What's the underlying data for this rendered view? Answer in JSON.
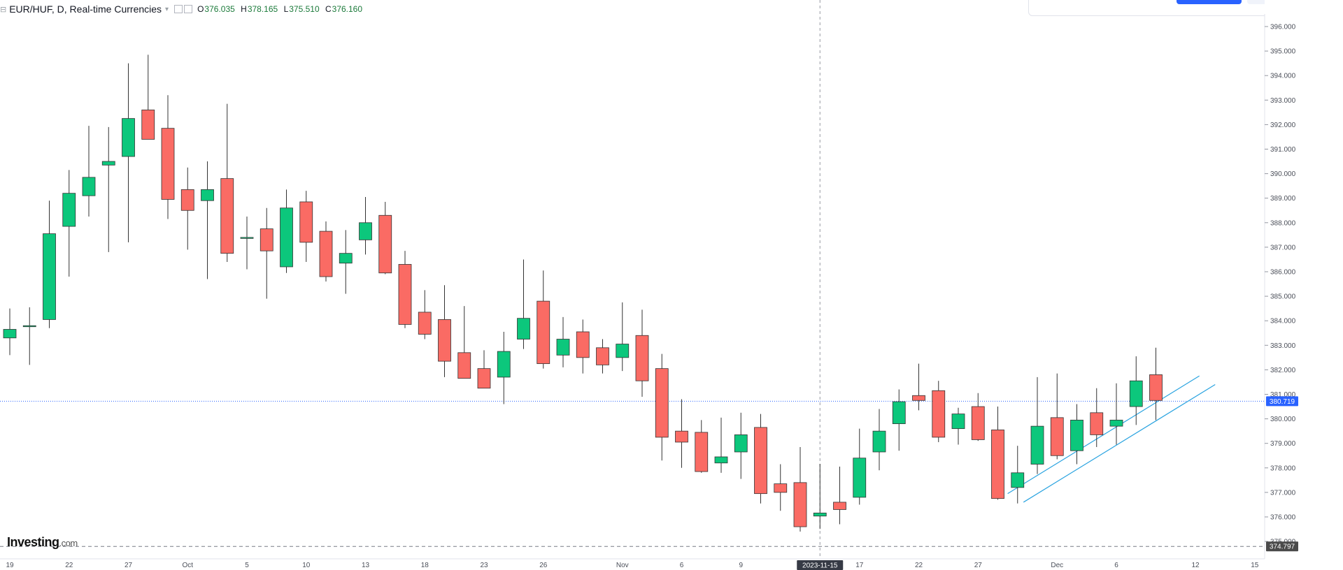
{
  "legend": {
    "symbol": "EUR/HUF, D, Real-time Currencies",
    "open_label": "O",
    "open": "376.035",
    "high_label": "H",
    "high": "378.165",
    "low_label": "L",
    "low": "375.510",
    "close_label": "C",
    "close": "376.160"
  },
  "brand": {
    "name": "Investing",
    "domain": ".com"
  },
  "colors": {
    "up": "#0cc77c",
    "down": "#fa6b64",
    "wick": "#333333",
    "price_line": "#2962ff",
    "trend": "#29a3e0"
  },
  "chart_data": {
    "type": "candlestick",
    "instrument": "EUR/HUF",
    "interval": "D",
    "y_range": [
      374.5,
      396.3
    ],
    "y_ticks": [
      "375.000",
      "376.000",
      "377.000",
      "378.000",
      "379.000",
      "380.000",
      "381.000",
      "382.000",
      "383.000",
      "384.000",
      "385.000",
      "386.000",
      "387.000",
      "388.000",
      "389.000",
      "390.000",
      "391.000",
      "392.000",
      "393.000",
      "394.000",
      "395.000",
      "396.000"
    ],
    "x_tick_labels": [
      {
        "label": "19",
        "index": 0
      },
      {
        "label": "22",
        "index": 3
      },
      {
        "label": "27",
        "index": 6
      },
      {
        "label": "Oct",
        "index": 9
      },
      {
        "label": "5",
        "index": 12
      },
      {
        "label": "10",
        "index": 15
      },
      {
        "label": "13",
        "index": 18
      },
      {
        "label": "18",
        "index": 21
      },
      {
        "label": "23",
        "index": 24
      },
      {
        "label": "26",
        "index": 27
      },
      {
        "label": "Nov",
        "index": 31
      },
      {
        "label": "6",
        "index": 34
      },
      {
        "label": "9",
        "index": 37
      },
      {
        "label": "17",
        "index": 43
      },
      {
        "label": "22",
        "index": 46
      },
      {
        "label": "27",
        "index": 49
      },
      {
        "label": "Dec",
        "index": 53
      },
      {
        "label": "6",
        "index": 56
      },
      {
        "label": "12",
        "index": 60
      },
      {
        "label": "15",
        "index": 63
      }
    ],
    "candles": [
      {
        "o": 383.3,
        "h": 384.5,
        "l": 382.6,
        "c": 383.65
      },
      {
        "o": 383.8,
        "h": 384.55,
        "l": 382.2,
        "c": 383.8
      },
      {
        "o": 384.05,
        "h": 388.9,
        "l": 383.7,
        "c": 387.55
      },
      {
        "o": 387.85,
        "h": 390.15,
        "l": 385.8,
        "c": 389.2
      },
      {
        "o": 389.1,
        "h": 391.95,
        "l": 388.25,
        "c": 389.85
      },
      {
        "o": 390.35,
        "h": 391.9,
        "l": 386.8,
        "c": 390.5
      },
      {
        "o": 390.7,
        "h": 394.5,
        "l": 387.2,
        "c": 392.25
      },
      {
        "o": 392.6,
        "h": 394.85,
        "l": 391.4,
        "c": 391.4
      },
      {
        "o": 391.85,
        "h": 393.2,
        "l": 388.15,
        "c": 388.95
      },
      {
        "o": 389.35,
        "h": 390.25,
        "l": 386.9,
        "c": 388.5
      },
      {
        "o": 388.9,
        "h": 390.5,
        "l": 385.7,
        "c": 389.35
      },
      {
        "o": 389.8,
        "h": 392.85,
        "l": 386.4,
        "c": 386.75
      },
      {
        "o": 387.4,
        "h": 388.25,
        "l": 386.1,
        "c": 387.4
      },
      {
        "o": 387.75,
        "h": 388.6,
        "l": 384.9,
        "c": 386.85
      },
      {
        "o": 386.2,
        "h": 389.35,
        "l": 385.95,
        "c": 388.6
      },
      {
        "o": 388.85,
        "h": 389.3,
        "l": 386.4,
        "c": 387.2
      },
      {
        "o": 387.65,
        "h": 388.05,
        "l": 385.6,
        "c": 385.8
      },
      {
        "o": 386.35,
        "h": 387.7,
        "l": 385.1,
        "c": 386.75
      },
      {
        "o": 387.3,
        "h": 389.05,
        "l": 386.7,
        "c": 388.0
      },
      {
        "o": 388.3,
        "h": 388.85,
        "l": 385.9,
        "c": 385.95
      },
      {
        "o": 386.3,
        "h": 386.85,
        "l": 383.7,
        "c": 383.85
      },
      {
        "o": 384.35,
        "h": 385.25,
        "l": 383.25,
        "c": 383.45
      },
      {
        "o": 384.05,
        "h": 385.45,
        "l": 381.7,
        "c": 382.35
      },
      {
        "o": 382.7,
        "h": 384.6,
        "l": 381.65,
        "c": 381.65
      },
      {
        "o": 382.05,
        "h": 382.8,
        "l": 381.25,
        "c": 381.25
      },
      {
        "o": 381.7,
        "h": 383.55,
        "l": 380.6,
        "c": 382.75
      },
      {
        "o": 383.25,
        "h": 386.5,
        "l": 382.85,
        "c": 384.1
      },
      {
        "o": 384.8,
        "h": 386.05,
        "l": 382.05,
        "c": 382.25
      },
      {
        "o": 382.6,
        "h": 384.15,
        "l": 382.1,
        "c": 383.25
      },
      {
        "o": 383.55,
        "h": 384.05,
        "l": 381.85,
        "c": 382.5
      },
      {
        "o": 382.9,
        "h": 383.25,
        "l": 381.85,
        "c": 382.2
      },
      {
        "o": 382.5,
        "h": 384.75,
        "l": 381.95,
        "c": 383.05
      },
      {
        "o": 383.4,
        "h": 384.45,
        "l": 380.9,
        "c": 381.55
      },
      {
        "o": 382.05,
        "h": 382.65,
        "l": 378.3,
        "c": 379.25
      },
      {
        "o": 379.5,
        "h": 380.8,
        "l": 378.0,
        "c": 379.05
      },
      {
        "o": 379.45,
        "h": 379.95,
        "l": 377.8,
        "c": 377.85
      },
      {
        "o": 378.2,
        "h": 380.05,
        "l": 377.8,
        "c": 378.45
      },
      {
        "o": 378.65,
        "h": 380.25,
        "l": 377.55,
        "c": 379.35
      },
      {
        "o": 379.65,
        "h": 380.2,
        "l": 376.55,
        "c": 376.95
      },
      {
        "o": 377.35,
        "h": 378.15,
        "l": 376.25,
        "c": 377.0
      },
      {
        "o": 377.4,
        "h": 378.85,
        "l": 375.4,
        "c": 375.6
      },
      {
        "o": 376.035,
        "h": 378.165,
        "l": 375.51,
        "c": 376.16
      },
      {
        "o": 376.6,
        "h": 378.05,
        "l": 375.7,
        "c": 376.3
      },
      {
        "o": 376.8,
        "h": 379.6,
        "l": 376.5,
        "c": 378.4
      },
      {
        "o": 378.65,
        "h": 380.4,
        "l": 377.9,
        "c": 379.5
      },
      {
        "o": 379.8,
        "h": 381.2,
        "l": 378.7,
        "c": 380.7
      },
      {
        "o": 380.95,
        "h": 382.25,
        "l": 380.35,
        "c": 380.75
      },
      {
        "o": 381.15,
        "h": 381.55,
        "l": 379.05,
        "c": 379.25
      },
      {
        "o": 379.6,
        "h": 380.45,
        "l": 378.95,
        "c": 380.2
      },
      {
        "o": 380.5,
        "h": 381.05,
        "l": 379.1,
        "c": 379.15
      },
      {
        "o": 379.55,
        "h": 380.5,
        "l": 376.7,
        "c": 376.75
      },
      {
        "o": 377.2,
        "h": 378.9,
        "l": 376.55,
        "c": 377.8
      },
      {
        "o": 378.15,
        "h": 381.7,
        "l": 377.75,
        "c": 379.7
      },
      {
        "o": 380.05,
        "h": 381.85,
        "l": 378.35,
        "c": 378.5
      },
      {
        "o": 378.7,
        "h": 380.6,
        "l": 378.15,
        "c": 379.95
      },
      {
        "o": 380.25,
        "h": 381.25,
        "l": 378.85,
        "c": 379.35
      },
      {
        "o": 379.7,
        "h": 381.45,
        "l": 378.95,
        "c": 379.95
      },
      {
        "o": 380.5,
        "h": 382.55,
        "l": 379.75,
        "c": 381.55
      },
      {
        "o": 381.8,
        "h": 382.9,
        "l": 379.95,
        "c": 380.75
      }
    ],
    "trend_lines": [
      {
        "from": {
          "index": 50.5,
          "y": 376.95
        },
        "to": {
          "index": 60.2,
          "y": 381.75
        }
      },
      {
        "from": {
          "index": 51.3,
          "y": 376.6
        },
        "to": {
          "index": 61.0,
          "y": 381.4
        }
      }
    ],
    "last_price_line": {
      "value": 380.719,
      "label": "380.719"
    },
    "min_line": {
      "value": 374.797,
      "label": "374.797"
    },
    "crosshair": {
      "index": 41,
      "label": "2023-11-15"
    }
  }
}
